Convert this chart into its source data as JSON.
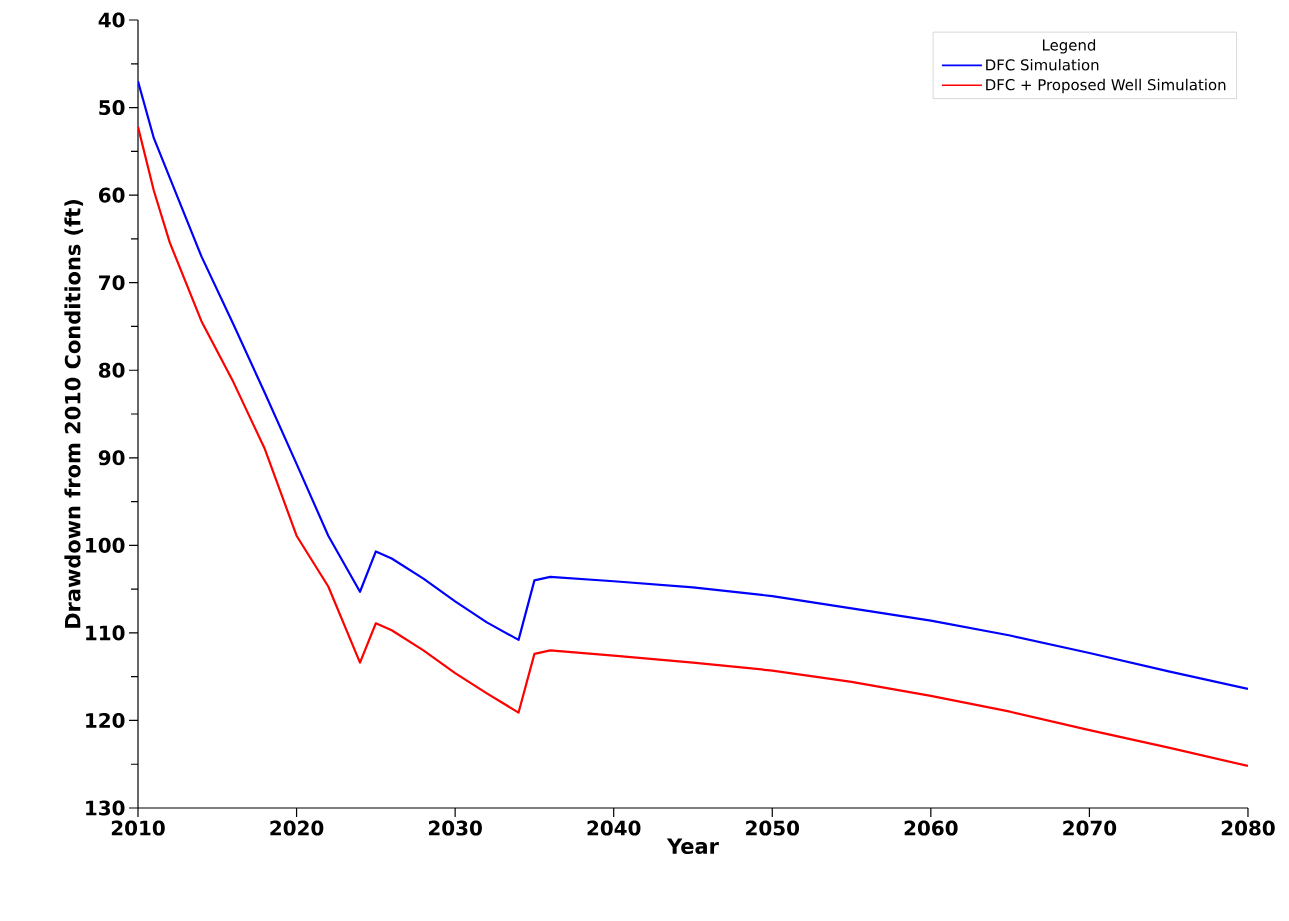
{
  "chart_data": {
    "type": "line",
    "xlabel": "Year",
    "ylabel": "Drawdown from 2010 Conditions (ft)",
    "legend_title": "Legend",
    "legend": "top right",
    "grid": false,
    "marker": "none",
    "line_style": "solid",
    "x": [
      2010,
      2011,
      2012,
      2014,
      2016,
      2018,
      2020,
      2022,
      2024,
      2025,
      2026,
      2028,
      2030,
      2032,
      2034,
      2035,
      2036,
      2040,
      2045,
      2050,
      2055,
      2060,
      2065,
      2070,
      2075,
      2080
    ],
    "series": [
      {
        "name": "DFC Simulation",
        "color": "#0000ff",
        "values": [
          47.0,
          53.5,
          58.0,
          67.0,
          74.7,
          82.6,
          90.7,
          98.9,
          105.3,
          100.7,
          101.5,
          103.8,
          106.4,
          108.8,
          110.8,
          104.0,
          103.6,
          104.1,
          104.8,
          105.8,
          107.2,
          108.6,
          110.3,
          112.3,
          114.4,
          116.4
        ]
      },
      {
        "name": "DFC + Proposed Well Simulation",
        "color": "#ff0000",
        "values": [
          52.2,
          59.5,
          65.4,
          74.4,
          81.3,
          89.0,
          98.9,
          104.7,
          113.4,
          108.9,
          109.7,
          112.0,
          114.6,
          116.9,
          119.1,
          112.4,
          112.0,
          112.6,
          113.4,
          114.3,
          115.6,
          117.2,
          119.0,
          121.1,
          123.1,
          125.2
        ]
      }
    ],
    "xlim": [
      2010,
      2080
    ],
    "xticks": [
      2010,
      2020,
      2030,
      2040,
      2050,
      2060,
      2070,
      2080
    ],
    "ylim": [
      130,
      40
    ],
    "yticks": [
      40,
      {
        "value": 45,
        "label": null
      },
      50,
      {
        "value": 55,
        "label": null
      },
      60,
      {
        "value": 65,
        "label": null
      },
      70,
      {
        "value": 75,
        "label": null
      },
      80,
      {
        "value": 85,
        "label": null
      },
      90,
      {
        "value": 95,
        "label": null
      },
      100,
      {
        "value": 105,
        "label": null
      },
      110,
      {
        "value": 115,
        "label": null
      },
      120,
      {
        "value": 125,
        "label": null
      },
      130
    ]
  }
}
